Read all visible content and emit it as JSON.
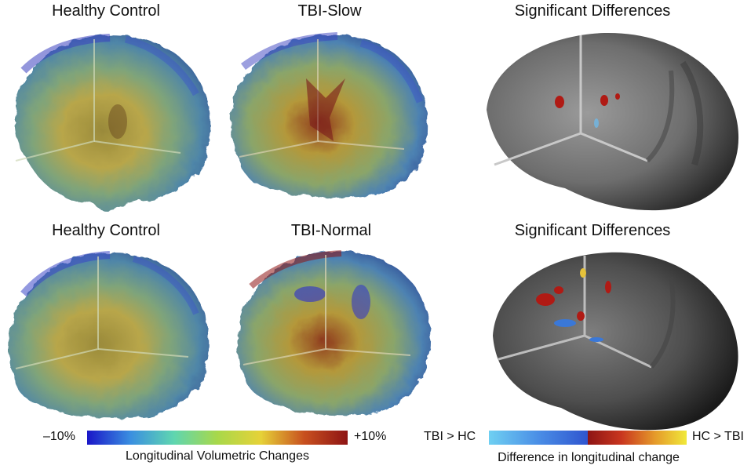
{
  "panels": [
    {
      "title": "Healthy Control"
    },
    {
      "title": "TBI-Slow"
    },
    {
      "title": "Significant Differences"
    },
    {
      "title": "Healthy Control"
    },
    {
      "title": "TBI-Normal"
    },
    {
      "title": "Significant Differences"
    }
  ],
  "legend_left": {
    "min_label": "–10%",
    "max_label": "+10%",
    "caption": "Longitudinal Volumetric Changes",
    "colors": [
      "#1a16c8",
      "#3a8fe0",
      "#5fd6b0",
      "#a8d84a",
      "#e6d238",
      "#c8501f",
      "#8e1414"
    ]
  },
  "legend_right": {
    "left_label": "TBI > HC",
    "right_label": "HC > TBI",
    "caption": "Difference in longitudinal change",
    "colors": [
      "#6fd0f2",
      "#4a8ee6",
      "#2f55cf",
      "#8e1414",
      "#c9361f",
      "#e59a2a",
      "#f0e93a"
    ]
  }
}
